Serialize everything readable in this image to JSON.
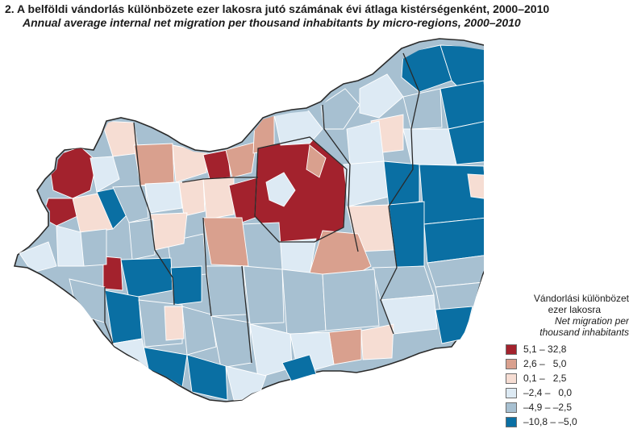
{
  "title": "2.  A belföldi vándorlás különbözete ezer lakosra jutó számának évi átlaga kistérségenként, 2000–2010",
  "subtitle": "Annual average internal net migration per thousand inhabitants by micro-regions, 2000–2010",
  "legend": {
    "title_hu_1": "Vándorlási különbözet",
    "title_hu_2": "ezer lakosra",
    "title_en_1": "Net migration per",
    "title_en_2": "thousand inhabitants",
    "items": [
      {
        "label": "5,1 – 32,8",
        "color": "#a3222d"
      },
      {
        "label": "2,6 –   5,0",
        "color": "#d9a08e"
      },
      {
        "label": "0,1 –   2,5",
        "color": "#f6ddd3"
      },
      {
        "label": "–2,4 –   0,0",
        "color": "#ddeaf4"
      },
      {
        "label": "–4,9 – –2,5",
        "color": "#a7c0d1"
      },
      {
        "label": "–10,8 – –5,0",
        "color": "#0a6fa3"
      }
    ]
  }
}
